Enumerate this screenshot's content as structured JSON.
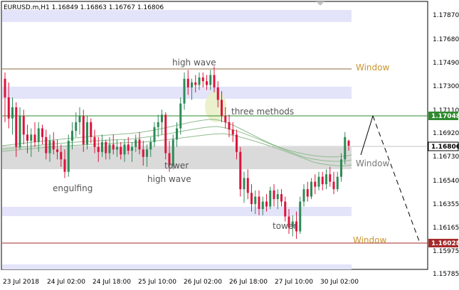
{
  "header": {
    "symbol_line": "EURUSD.m,H1  1.16849 1.16863 1.16767 1.16806"
  },
  "colors": {
    "bull": "#2e8b57",
    "bear": "#dc143c",
    "zone_blue": "#e3e3fa",
    "zone_gray": "#dadada",
    "resistance": "#2e8b2e",
    "support": "#a52a2a",
    "window_text": "#c8952e",
    "ma": "#8fbc8f"
  },
  "price_axis": {
    "ticks": [
      "1.17870",
      "1.17680",
      "1.17490",
      "1.17300",
      "1.17110",
      "1.16920",
      "1.16730",
      "1.16540",
      "1.16355",
      "1.16165",
      "1.15975",
      "1.15785"
    ],
    "current_price": "1.16806",
    "resistance_price": "1.17048",
    "support_price": "1.16028"
  },
  "time_axis": {
    "labels": [
      "23 Jul 2018",
      "24 Jul 02:00",
      "24 Jul 18:00",
      "25 Jul 10:00",
      "26 Jul 02:00",
      "26 Jul 18:00",
      "27 Jul 10:00",
      "30 Jul 02:00"
    ]
  },
  "annotations": {
    "high_wave_top": "high wave",
    "three_methods": "three methods",
    "engulfing": "engulfing",
    "tower_mid": "tower",
    "high_wave_bottom": "high wave",
    "tower_bottom": "tower",
    "window_top": "Window",
    "window_mid": "Window",
    "window_bottom": "Window"
  },
  "chart_data": {
    "type": "candlestick",
    "symbol": "EURUSD.m",
    "timeframe": "H1",
    "ohlc_header": {
      "open": 1.16849,
      "high": 1.16863,
      "low": 1.16767,
      "close": 1.16806
    },
    "ylim": [
      1.1571,
      1.1796
    ],
    "key_levels": {
      "resistance": 1.17048,
      "support": 1.16028,
      "window_top_line": 1.1744
    },
    "candles": [
      {
        "o": 1.1735,
        "h": 1.174,
        "l": 1.17,
        "c": 1.172
      },
      {
        "o": 1.172,
        "h": 1.1732,
        "l": 1.1695,
        "c": 1.1703
      },
      {
        "o": 1.1703,
        "h": 1.172,
        "l": 1.169,
        "c": 1.1712
      },
      {
        "o": 1.1712,
        "h": 1.1716,
        "l": 1.1672,
        "c": 1.168
      },
      {
        "o": 1.168,
        "h": 1.1712,
        "l": 1.1678,
        "c": 1.1705
      },
      {
        "o": 1.1705,
        "h": 1.171,
        "l": 1.1682,
        "c": 1.169
      },
      {
        "o": 1.169,
        "h": 1.1698,
        "l": 1.1675,
        "c": 1.1685
      },
      {
        "o": 1.1685,
        "h": 1.1695,
        "l": 1.1672,
        "c": 1.169
      },
      {
        "o": 1.169,
        "h": 1.17,
        "l": 1.168,
        "c": 1.1684
      },
      {
        "o": 1.1684,
        "h": 1.17,
        "l": 1.1676,
        "c": 1.1695
      },
      {
        "o": 1.1695,
        "h": 1.1698,
        "l": 1.1682,
        "c": 1.1688
      },
      {
        "o": 1.1688,
        "h": 1.1694,
        "l": 1.167,
        "c": 1.1675
      },
      {
        "o": 1.1675,
        "h": 1.169,
        "l": 1.1668,
        "c": 1.1685
      },
      {
        "o": 1.1685,
        "h": 1.1692,
        "l": 1.1674,
        "c": 1.1678
      },
      {
        "o": 1.1678,
        "h": 1.1686,
        "l": 1.167,
        "c": 1.1676
      },
      {
        "o": 1.1676,
        "h": 1.1682,
        "l": 1.1664,
        "c": 1.167
      },
      {
        "o": 1.167,
        "h": 1.1678,
        "l": 1.1655,
        "c": 1.166
      },
      {
        "o": 1.166,
        "h": 1.169,
        "l": 1.1656,
        "c": 1.1685
      },
      {
        "o": 1.1685,
        "h": 1.17,
        "l": 1.1678,
        "c": 1.1693
      },
      {
        "o": 1.1693,
        "h": 1.1708,
        "l": 1.1688,
        "c": 1.17
      },
      {
        "o": 1.17,
        "h": 1.1712,
        "l": 1.169,
        "c": 1.1705
      },
      {
        "o": 1.1705,
        "h": 1.171,
        "l": 1.1676,
        "c": 1.1682
      },
      {
        "o": 1.1682,
        "h": 1.1705,
        "l": 1.1678,
        "c": 1.17
      },
      {
        "o": 1.17,
        "h": 1.1703,
        "l": 1.1683,
        "c": 1.1688
      },
      {
        "o": 1.1688,
        "h": 1.1694,
        "l": 1.1675,
        "c": 1.168
      },
      {
        "o": 1.168,
        "h": 1.1688,
        "l": 1.1668,
        "c": 1.1676
      },
      {
        "o": 1.1676,
        "h": 1.169,
        "l": 1.1672,
        "c": 1.1684
      },
      {
        "o": 1.1684,
        "h": 1.1686,
        "l": 1.167,
        "c": 1.1675
      },
      {
        "o": 1.1675,
        "h": 1.1688,
        "l": 1.167,
        "c": 1.1682
      },
      {
        "o": 1.1682,
        "h": 1.169,
        "l": 1.1674,
        "c": 1.1678
      },
      {
        "o": 1.1678,
        "h": 1.1686,
        "l": 1.1672,
        "c": 1.168
      },
      {
        "o": 1.168,
        "h": 1.1684,
        "l": 1.167,
        "c": 1.1674
      },
      {
        "o": 1.1674,
        "h": 1.1686,
        "l": 1.1668,
        "c": 1.1682
      },
      {
        "o": 1.1682,
        "h": 1.1688,
        "l": 1.1674,
        "c": 1.1677
      },
      {
        "o": 1.1677,
        "h": 1.1684,
        "l": 1.1668,
        "c": 1.168
      },
      {
        "o": 1.168,
        "h": 1.169,
        "l": 1.1676,
        "c": 1.1686
      },
      {
        "o": 1.1686,
        "h": 1.1692,
        "l": 1.1674,
        "c": 1.1678
      },
      {
        "o": 1.1678,
        "h": 1.1685,
        "l": 1.1665,
        "c": 1.1672
      },
      {
        "o": 1.1672,
        "h": 1.1682,
        "l": 1.1664,
        "c": 1.1678
      },
      {
        "o": 1.1678,
        "h": 1.1688,
        "l": 1.1672,
        "c": 1.1684
      },
      {
        "o": 1.1684,
        "h": 1.17,
        "l": 1.168,
        "c": 1.1696
      },
      {
        "o": 1.1696,
        "h": 1.1706,
        "l": 1.1688,
        "c": 1.17
      },
      {
        "o": 1.17,
        "h": 1.171,
        "l": 1.169,
        "c": 1.1706
      },
      {
        "o": 1.1706,
        "h": 1.1708,
        "l": 1.167,
        "c": 1.1675
      },
      {
        "o": 1.1675,
        "h": 1.1685,
        "l": 1.166,
        "c": 1.1665
      },
      {
        "o": 1.1665,
        "h": 1.169,
        "l": 1.1662,
        "c": 1.1686
      },
      {
        "o": 1.1686,
        "h": 1.17,
        "l": 1.168,
        "c": 1.1695
      },
      {
        "o": 1.1695,
        "h": 1.172,
        "l": 1.169,
        "c": 1.1715
      },
      {
        "o": 1.1715,
        "h": 1.174,
        "l": 1.171,
        "c": 1.1735
      },
      {
        "o": 1.1735,
        "h": 1.1742,
        "l": 1.1722,
        "c": 1.1728
      },
      {
        "o": 1.1728,
        "h": 1.1735,
        "l": 1.1718,
        "c": 1.1732
      },
      {
        "o": 1.1732,
        "h": 1.1738,
        "l": 1.1724,
        "c": 1.173
      },
      {
        "o": 1.173,
        "h": 1.174,
        "l": 1.1726,
        "c": 1.1736
      },
      {
        "o": 1.1736,
        "h": 1.174,
        "l": 1.1728,
        "c": 1.1733
      },
      {
        "o": 1.1733,
        "h": 1.1738,
        "l": 1.1726,
        "c": 1.173
      },
      {
        "o": 1.173,
        "h": 1.1742,
        "l": 1.1726,
        "c": 1.1738
      },
      {
        "o": 1.1738,
        "h": 1.1745,
        "l": 1.1724,
        "c": 1.1728
      },
      {
        "o": 1.1728,
        "h": 1.1733,
        "l": 1.1712,
        "c": 1.1718
      },
      {
        "o": 1.1718,
        "h": 1.1725,
        "l": 1.17,
        "c": 1.1705
      },
      {
        "o": 1.1705,
        "h": 1.1712,
        "l": 1.1695,
        "c": 1.17
      },
      {
        "o": 1.17,
        "h": 1.1706,
        "l": 1.1688,
        "c": 1.1694
      },
      {
        "o": 1.1694,
        "h": 1.17,
        "l": 1.1684,
        "c": 1.169
      },
      {
        "o": 1.169,
        "h": 1.1694,
        "l": 1.167,
        "c": 1.1676
      },
      {
        "o": 1.1676,
        "h": 1.168,
        "l": 1.164,
        "c": 1.1646
      },
      {
        "o": 1.1646,
        "h": 1.166,
        "l": 1.1635,
        "c": 1.1655
      },
      {
        "o": 1.1655,
        "h": 1.1662,
        "l": 1.1638,
        "c": 1.1643
      },
      {
        "o": 1.1643,
        "h": 1.165,
        "l": 1.1628,
        "c": 1.1634
      },
      {
        "o": 1.1634,
        "h": 1.1645,
        "l": 1.1626,
        "c": 1.164
      },
      {
        "o": 1.164,
        "h": 1.1645,
        "l": 1.1625,
        "c": 1.163
      },
      {
        "o": 1.163,
        "h": 1.164,
        "l": 1.1625,
        "c": 1.1636
      },
      {
        "o": 1.1636,
        "h": 1.1642,
        "l": 1.1628,
        "c": 1.1632
      },
      {
        "o": 1.1632,
        "h": 1.1648,
        "l": 1.163,
        "c": 1.1645
      },
      {
        "o": 1.1645,
        "h": 1.165,
        "l": 1.1632,
        "c": 1.1638
      },
      {
        "o": 1.1638,
        "h": 1.1646,
        "l": 1.163,
        "c": 1.1642
      },
      {
        "o": 1.1642,
        "h": 1.1646,
        "l": 1.1632,
        "c": 1.1636
      },
      {
        "o": 1.1636,
        "h": 1.164,
        "l": 1.162,
        "c": 1.1624
      },
      {
        "o": 1.1624,
        "h": 1.163,
        "l": 1.161,
        "c": 1.1615
      },
      {
        "o": 1.1615,
        "h": 1.1625,
        "l": 1.1608,
        "c": 1.162
      },
      {
        "o": 1.162,
        "h": 1.1628,
        "l": 1.1606,
        "c": 1.1612
      },
      {
        "o": 1.1612,
        "h": 1.164,
        "l": 1.161,
        "c": 1.1636
      },
      {
        "o": 1.1636,
        "h": 1.165,
        "l": 1.1632,
        "c": 1.1646
      },
      {
        "o": 1.1646,
        "h": 1.1652,
        "l": 1.1636,
        "c": 1.164
      },
      {
        "o": 1.164,
        "h": 1.1655,
        "l": 1.1638,
        "c": 1.1652
      },
      {
        "o": 1.1652,
        "h": 1.1658,
        "l": 1.1642,
        "c": 1.1648
      },
      {
        "o": 1.1648,
        "h": 1.166,
        "l": 1.1645,
        "c": 1.1656
      },
      {
        "o": 1.1656,
        "h": 1.166,
        "l": 1.1645,
        "c": 1.165
      },
      {
        "o": 1.165,
        "h": 1.1662,
        "l": 1.1646,
        "c": 1.1658
      },
      {
        "o": 1.1658,
        "h": 1.1664,
        "l": 1.1648,
        "c": 1.1652
      },
      {
        "o": 1.1652,
        "h": 1.166,
        "l": 1.1642,
        "c": 1.1646
      },
      {
        "o": 1.1646,
        "h": 1.166,
        "l": 1.1644,
        "c": 1.1656
      },
      {
        "o": 1.1656,
        "h": 1.1675,
        "l": 1.1652,
        "c": 1.167
      },
      {
        "o": 1.167,
        "h": 1.1692,
        "l": 1.1666,
        "c": 1.1688
      },
      {
        "o": 1.1685,
        "h": 1.1686,
        "l": 1.1677,
        "c": 1.1681
      }
    ]
  }
}
